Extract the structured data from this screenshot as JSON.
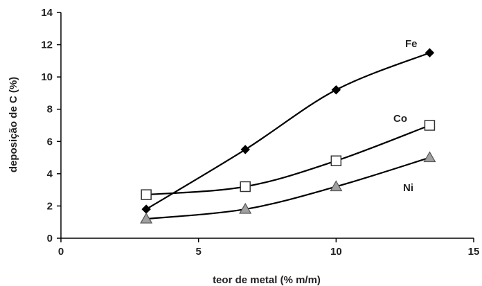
{
  "chart_data": {
    "type": "line",
    "xlabel": "teor de metal (% m/m)",
    "ylabel": "deposição de C (%)",
    "xlim": [
      0,
      15
    ],
    "ylim": [
      0,
      14
    ],
    "xticks": [
      0,
      5,
      10,
      15
    ],
    "yticks": [
      0,
      2,
      4,
      6,
      8,
      10,
      12,
      14
    ],
    "grid": false,
    "series": [
      {
        "name": "Fe",
        "marker": "diamond",
        "color": "#000000",
        "x": [
          3.1,
          6.7,
          10.0,
          13.4
        ],
        "y": [
          1.8,
          5.5,
          9.2,
          11.5
        ]
      },
      {
        "name": "Co",
        "marker": "square-open",
        "color": "#000000",
        "x": [
          3.1,
          6.7,
          10.0,
          13.4
        ],
        "y": [
          2.7,
          3.2,
          4.8,
          7.0
        ]
      },
      {
        "name": "Ni",
        "marker": "triangle",
        "color": "#a0a0a0",
        "x": [
          3.1,
          6.7,
          10.0,
          13.4
        ],
        "y": [
          1.2,
          1.8,
          3.2,
          5.0
        ]
      }
    ]
  }
}
